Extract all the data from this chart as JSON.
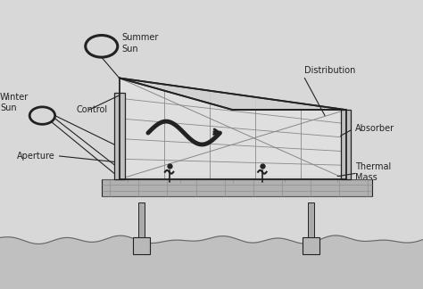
{
  "bg_color": "#d8d8d8",
  "line_color": "#666666",
  "dark_color": "#222222",
  "mid_color": "#888888",
  "fill_light": "#e8e8e8",
  "fill_mid": "#c8c8c8",
  "fill_dark": "#aaaaaa",
  "labels": {
    "summer_sun": "Summer\nSun",
    "winter_sun": "Winter\nSun",
    "control": "Control",
    "distribution": "Distribution",
    "aperture": "Aperture",
    "absorber": "Absorber",
    "thermal_mass": "Thermal\nMass"
  }
}
